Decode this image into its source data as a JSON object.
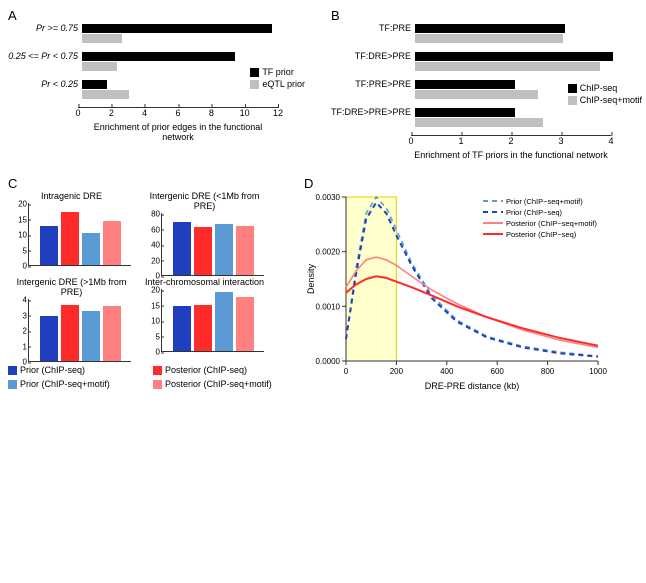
{
  "colors": {
    "black": "#000000",
    "gray": "#bfbfbf",
    "blue_dark": "#1f3fbf",
    "blue_light": "#5b9bd5",
    "red_dark": "#ff2a2a",
    "red_light": "#ff8080",
    "highlight_fill": "#ffffcc",
    "highlight_stroke": "#e6d000"
  },
  "panelA": {
    "label": "A",
    "xlabel": "Enrichment of prior edges in the functional network",
    "xmax": 12,
    "ticks": [
      0,
      2,
      4,
      6,
      8,
      10,
      12
    ],
    "groups": [
      {
        "label": "Pr >= 0.75",
        "italic": true,
        "tf": 11.4,
        "eqtl": 2.4
      },
      {
        "label": "0.25 <= Pr < 0.75",
        "italic": true,
        "tf": 9.2,
        "eqtl": 2.1
      },
      {
        "label": "Pr < 0.25",
        "italic": true,
        "tf": 1.5,
        "eqtl": 2.8
      }
    ],
    "legend": [
      {
        "color": "black",
        "label": "TF prior"
      },
      {
        "color": "gray",
        "label": "eQTL prior"
      }
    ]
  },
  "panelB": {
    "label": "B",
    "xlabel": "Enrichment of TF priors in the functional network",
    "xmax": 4,
    "ticks": [
      0,
      1,
      2,
      3,
      4
    ],
    "groups": [
      {
        "label": "TF:PRE",
        "a": 3.0,
        "b": 2.95
      },
      {
        "label": "TF:DRE>PRE",
        "a": 3.95,
        "b": 3.7
      },
      {
        "label": "TF:PRE>PRE",
        "a": 2.0,
        "b": 2.45
      },
      {
        "label": "TF:DRE>PRE>PRE",
        "a": 2.0,
        "b": 2.55
      }
    ],
    "legend": [
      {
        "color": "black",
        "label": "ChIP-seq"
      },
      {
        "color": "gray",
        "label": "ChIP-seq+motif"
      }
    ]
  },
  "panelC": {
    "label": "C",
    "charts": [
      {
        "title": "Intragenic DRE",
        "ymax": 20,
        "yticks": [
          0,
          5,
          10,
          15,
          20
        ],
        "bars": [
          {
            "color": "blue_dark",
            "v": 12.5
          },
          {
            "color": "red_dark",
            "v": 17.2
          },
          {
            "color": "blue_light",
            "v": 10.2
          },
          {
            "color": "red_light",
            "v": 14.2
          }
        ]
      },
      {
        "title": "Intergenic DRE (<1Mb from PRE)",
        "ymax": 80,
        "yticks": [
          0,
          20,
          40,
          60,
          80
        ],
        "bars": [
          {
            "color": "blue_dark",
            "v": 69
          },
          {
            "color": "red_dark",
            "v": 62
          },
          {
            "color": "blue_light",
            "v": 66
          },
          {
            "color": "red_light",
            "v": 63
          }
        ]
      },
      {
        "title": "Intergenic DRE (>1Mb from PRE)",
        "ymax": 4,
        "yticks": [
          0,
          1,
          2,
          3,
          4
        ],
        "bars": [
          {
            "color": "blue_dark",
            "v": 2.9
          },
          {
            "color": "red_dark",
            "v": 3.6
          },
          {
            "color": "blue_light",
            "v": 3.25
          },
          {
            "color": "red_light",
            "v": 3.55
          }
        ]
      },
      {
        "title": "Inter-chromosomal interaction",
        "ymax": 20,
        "yticks": [
          0,
          5,
          10,
          15,
          20
        ],
        "bars": [
          {
            "color": "blue_dark",
            "v": 14.5
          },
          {
            "color": "red_dark",
            "v": 15.0
          },
          {
            "color": "blue_light",
            "v": 19.0
          },
          {
            "color": "red_light",
            "v": 17.5
          }
        ]
      }
    ],
    "legend": [
      {
        "color": "blue_dark",
        "label": "Prior (ChIP-seq)"
      },
      {
        "color": "red_dark",
        "label": "Posterior (ChIP-seq)"
      },
      {
        "color": "blue_light",
        "label": "Prior (ChIP-seq+motif)"
      },
      {
        "color": "red_light",
        "label": "Posterior (ChIP-seq+motif)"
      }
    ]
  },
  "panelD": {
    "label": "D",
    "xlabel": "DRE-PRE distance (kb)",
    "ylabel": "Density",
    "xticks": [
      0,
      200,
      400,
      600,
      800,
      1000
    ],
    "yticks": [
      "0.0000",
      "0.0010",
      "0.0020",
      "0.0030"
    ],
    "highlight_range": [
      0,
      200
    ],
    "legend": [
      {
        "label": "Prior (ChIP−seq+motif)",
        "color": "blue_light",
        "dash": true
      },
      {
        "label": "Prior (ChIP−seq)",
        "color": "blue_dark",
        "dash": true
      },
      {
        "label": "Posterior (ChIP−seq+motif)",
        "color": "red_light",
        "dash": false
      },
      {
        "label": "Posterior (ChIP−seq)",
        "color": "red_dark",
        "dash": false
      }
    ],
    "curves": {
      "prior_motif": [
        [
          0,
          0.0004
        ],
        [
          40,
          0.0017
        ],
        [
          80,
          0.0027
        ],
        [
          120,
          0.003
        ],
        [
          160,
          0.0028
        ],
        [
          200,
          0.0024
        ],
        [
          260,
          0.0018
        ],
        [
          340,
          0.0012
        ],
        [
          440,
          0.00075
        ],
        [
          560,
          0.00045
        ],
        [
          700,
          0.00027
        ],
        [
          850,
          0.00016
        ],
        [
          1000,
          9e-05
        ]
      ],
      "prior_chip": [
        [
          0,
          0.0004
        ],
        [
          40,
          0.0016
        ],
        [
          80,
          0.0026
        ],
        [
          120,
          0.0029
        ],
        [
          160,
          0.0027
        ],
        [
          200,
          0.0023
        ],
        [
          260,
          0.00175
        ],
        [
          340,
          0.00115
        ],
        [
          440,
          0.00072
        ],
        [
          560,
          0.00043
        ],
        [
          700,
          0.00025
        ],
        [
          850,
          0.00014
        ],
        [
          1000,
          8e-05
        ]
      ],
      "post_motif": [
        [
          0,
          0.00135
        ],
        [
          40,
          0.00165
        ],
        [
          80,
          0.00185
        ],
        [
          120,
          0.0019
        ],
        [
          160,
          0.00185
        ],
        [
          200,
          0.00175
        ],
        [
          260,
          0.00155
        ],
        [
          340,
          0.0013
        ],
        [
          440,
          0.00105
        ],
        [
          560,
          0.0008
        ],
        [
          700,
          0.00057
        ],
        [
          850,
          0.00038
        ],
        [
          1000,
          0.00025
        ]
      ],
      "post_chip": [
        [
          0,
          0.00125
        ],
        [
          40,
          0.0014
        ],
        [
          80,
          0.0015
        ],
        [
          120,
          0.00155
        ],
        [
          160,
          0.00152
        ],
        [
          200,
          0.00145
        ],
        [
          260,
          0.00135
        ],
        [
          340,
          0.0012
        ],
        [
          440,
          0.001
        ],
        [
          560,
          0.0008
        ],
        [
          700,
          0.0006
        ],
        [
          850,
          0.00042
        ],
        [
          1000,
          0.00028
        ]
      ]
    }
  }
}
